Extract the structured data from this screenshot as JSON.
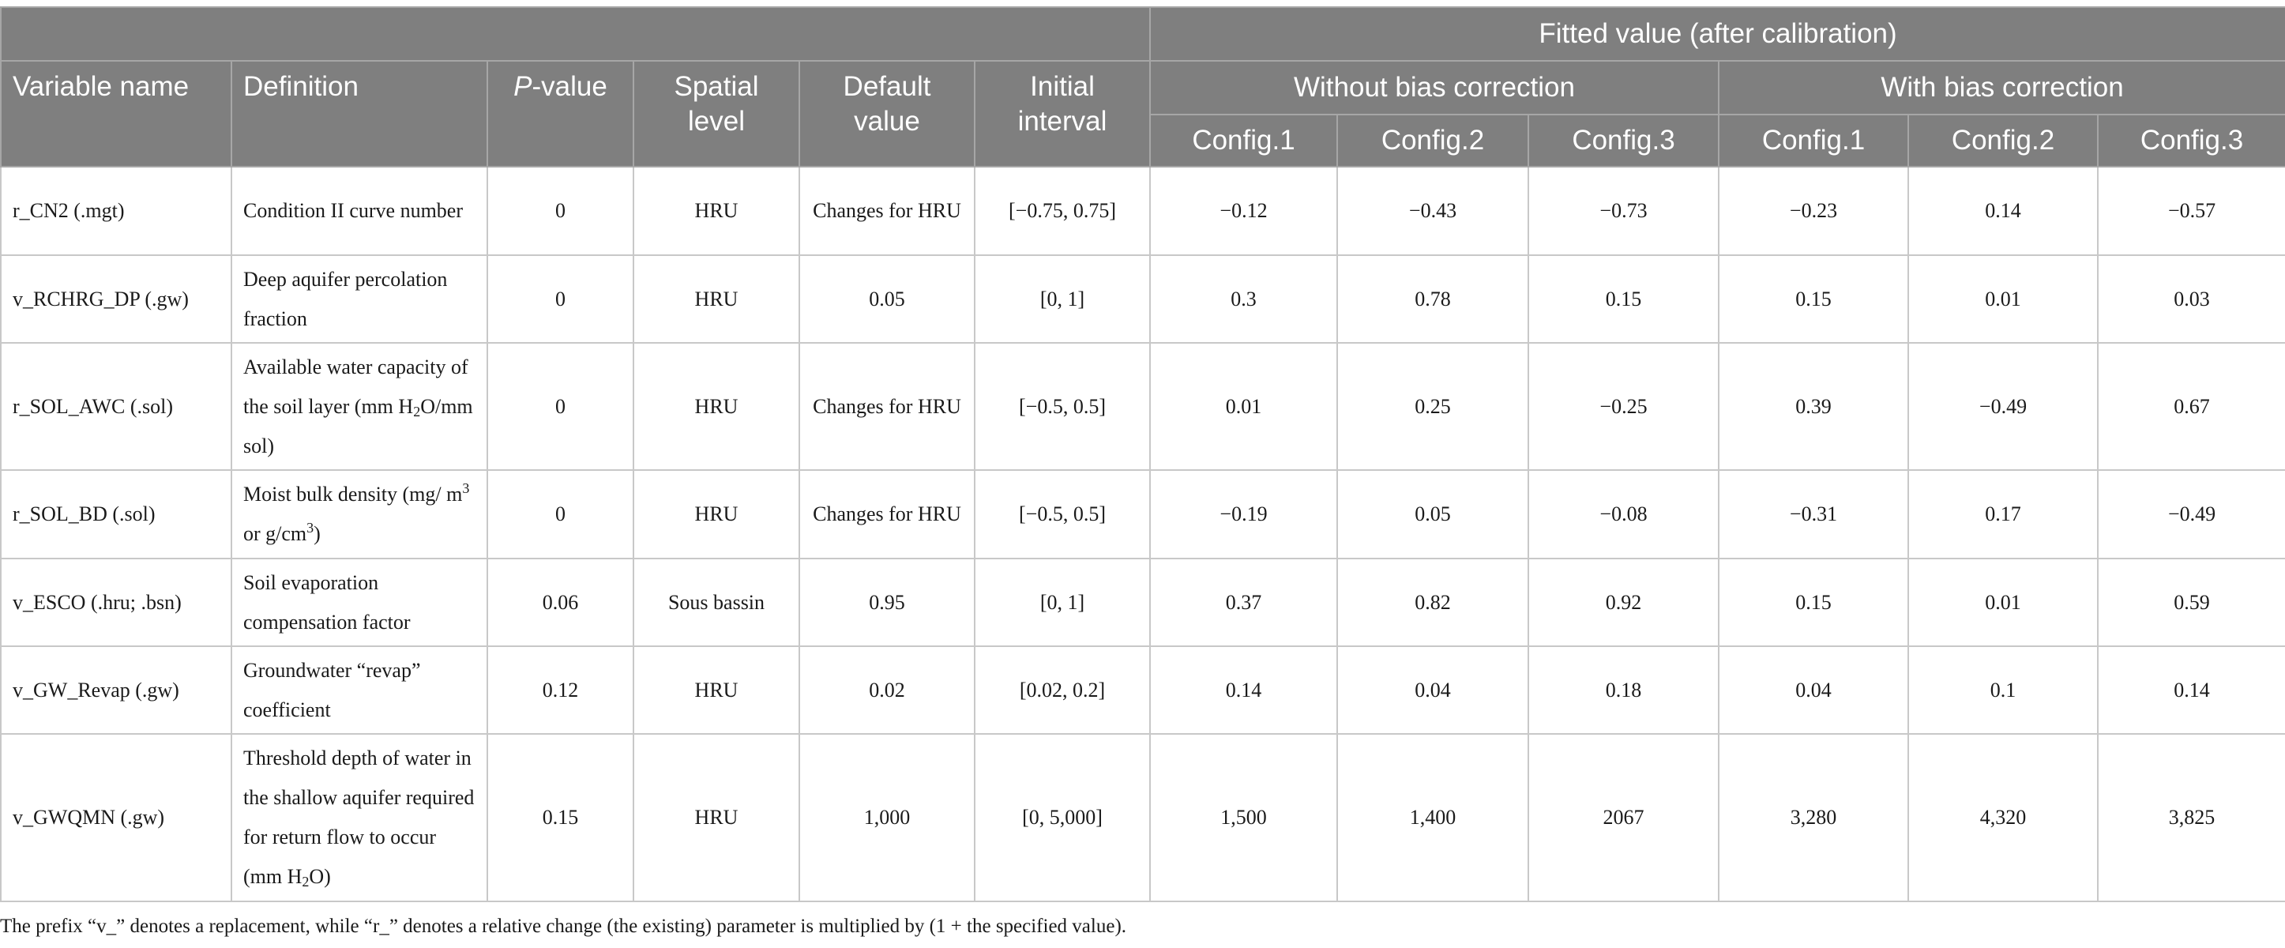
{
  "header": {
    "fitted_group": "Fitted value (after calibration)",
    "without_bias": "Without bias correction",
    "with_bias": "With bias correction",
    "col_variable": "Variable name",
    "col_definition": "Definition",
    "col_p_italic": "P",
    "col_p_rest": "-value",
    "col_spatial": "Spatial level",
    "col_default": "Default value",
    "col_initial": "Initial interval",
    "config1": "Config.1",
    "config2": "Config.2",
    "config3": "Config.3"
  },
  "rows": [
    {
      "name": "r_CN2 (.mgt)",
      "definition": "Condition II curve number",
      "p": "0",
      "spatial": "HRU",
      "default": "Changes for HRU",
      "interval": "[−0.75, 0.75]",
      "wo1": "−0.12",
      "wo2": "−0.43",
      "wo3": "−0.73",
      "w1": "−0.23",
      "w2": "0.14",
      "w3": "−0.57"
    },
    {
      "name": "v_RCHRG_DP (.gw)",
      "definition": "Deep aquifer percolation fraction",
      "p": "0",
      "spatial": "HRU",
      "default": "0.05",
      "interval": "[0, 1]",
      "wo1": "0.3",
      "wo2": "0.78",
      "wo3": "0.15",
      "w1": "0.15",
      "w2": "0.01",
      "w3": "0.03"
    },
    {
      "name": "r_SOL_AWC (.sol)",
      "def_a": "Available water capacity of the soil layer (mm H",
      "def_sub": "2",
      "def_b": "O/mm sol)",
      "p": "0",
      "spatial": "HRU",
      "default": "Changes for HRU",
      "interval": "[−0.5, 0.5]",
      "wo1": "0.01",
      "wo2": "0.25",
      "wo3": "−0.25",
      "w1": "0.39",
      "w2": "−0.49",
      "w3": "0.67"
    },
    {
      "name": "r_SOL_BD (.sol)",
      "def_a": "Moist bulk density (mg/ m",
      "def_sup1": "3",
      "def_b": " or g/cm",
      "def_sup2": "3",
      "def_c": ")",
      "p": "0",
      "spatial": "HRU",
      "default": "Changes for HRU",
      "interval": "[−0.5, 0.5]",
      "wo1": "−0.19",
      "wo2": "0.05",
      "wo3": "−0.08",
      "w1": "−0.31",
      "w2": "0.17",
      "w3": "−0.49"
    },
    {
      "name": "v_ESCO (.hru; .bsn)",
      "definition": "Soil evaporation compensation factor",
      "p": "0.06",
      "spatial": "Sous bassin",
      "default": "0.95",
      "interval": "[0, 1]",
      "wo1": "0.37",
      "wo2": "0.82",
      "wo3": "0.92",
      "w1": "0.15",
      "w2": "0.01",
      "w3": "0.59"
    },
    {
      "name": "v_GW_Revap (.gw)",
      "definition": "Groundwater “revap” coefficient",
      "p": "0.12",
      "spatial": "HRU",
      "default": "0.02",
      "interval": "[0.02, 0.2]",
      "wo1": "0.14",
      "wo2": "0.04",
      "wo3": "0.18",
      "w1": "0.04",
      "w2": "0.1",
      "w3": "0.14"
    },
    {
      "name": "v_GWQMN (.gw)",
      "def_a": "Threshold depth of water in the shallow aquifer required for return flow to occur (mm H",
      "def_sub": "2",
      "def_b": "O)",
      "p": "0.15",
      "spatial": "HRU",
      "default": "1,000",
      "interval": "[0, 5,000]",
      "wo1": "1,500",
      "wo2": "1,400",
      "wo3": "2067",
      "w1": "3,280",
      "w2": "4,320",
      "w3": "3,825"
    }
  ],
  "footnote": "The prefix “v_” denotes a replacement, while “r_” denotes a relative change (the existing) parameter is multiplied by (1 + the specified value)."
}
